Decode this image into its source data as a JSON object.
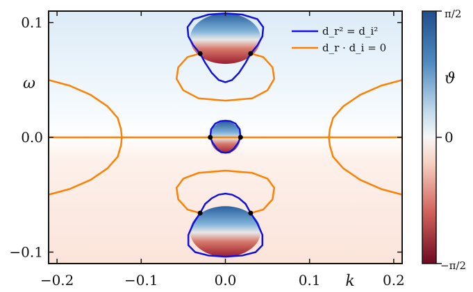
{
  "chart_data": {
    "type": "heatmap",
    "title": "",
    "xlabel": "k",
    "ylabel": "ω",
    "xlim": [
      -0.21,
      0.21
    ],
    "ylim": [
      -0.11,
      0.11
    ],
    "x_ticks": [
      -0.2,
      -0.1,
      0.0,
      0.1,
      0.2
    ],
    "x_tick_labels": [
      "−0.2",
      "−0.1",
      "0.0",
      "0.1",
      "0.2"
    ],
    "y_ticks": [
      -0.1,
      0.0,
      0.1
    ],
    "y_tick_labels": [
      "−0.1",
      "0.0",
      "0.1"
    ],
    "colorbar": {
      "label": "ϑ",
      "range": [
        "−π/2",
        "π/2"
      ],
      "ticks": [
        "π/2",
        "0",
        "−π/2"
      ],
      "colormap": "RdBu (red negative, blue positive)"
    },
    "legend": {
      "placement": "top-right",
      "entries": [
        {
          "label": "d_r² = d_i²",
          "color": "#1010e0"
        },
        {
          "label": "d_r · d_i = 0",
          "color": "#ff8000"
        }
      ]
    },
    "series": [
      {
        "name": "d_r² = d_i²",
        "color": "#1010e0",
        "contours": [
          {
            "k": [
              -0.03,
              -0.038,
              -0.044,
              -0.045,
              -0.038,
              -0.02,
              0,
              0.02,
              0.038,
              0.045,
              0.044,
              0.038,
              0.03
            ],
            "w": [
              0.073,
              0.08,
              0.088,
              0.096,
              0.103,
              0.107,
              0.108,
              0.107,
              0.103,
              0.096,
              0.088,
              0.08,
              0.073
            ]
          },
          {
            "k": [
              -0.03,
              -0.024,
              -0.016,
              -0.008,
              0,
              0.008,
              0.016,
              0.024,
              0.03
            ],
            "w": [
              0.073,
              0.065,
              0.056,
              0.05,
              0.048,
              0.05,
              0.056,
              0.065,
              0.073
            ]
          },
          {
            "k": [
              -0.018,
              -0.017,
              -0.012,
              -0.006,
              0,
              0.006,
              0.012,
              0.017,
              0.018
            ],
            "w": [
              0,
              0.007,
              0.012,
              0.014,
              0.0145,
              0.014,
              0.012,
              0.007,
              0
            ]
          },
          {
            "k": [
              -0.018,
              -0.015,
              -0.01,
              -0.005,
              0,
              0.005,
              0.01,
              0.015,
              0.018
            ],
            "w": [
              0,
              -0.005,
              -0.01,
              -0.013,
              -0.0135,
              -0.013,
              -0.01,
              -0.005,
              0
            ]
          },
          {
            "k": [
              -0.03,
              -0.024,
              -0.016,
              -0.008,
              0,
              0.008,
              0.016,
              0.024,
              0.03
            ],
            "w": [
              -0.066,
              -0.058,
              -0.053,
              -0.05,
              -0.049,
              -0.05,
              -0.053,
              -0.058,
              -0.066
            ]
          },
          {
            "k": [
              -0.03,
              -0.038,
              -0.044,
              -0.044,
              -0.036,
              -0.02,
              0,
              0.02,
              0.036,
              0.044,
              0.044,
              0.038,
              0.03
            ],
            "w": [
              -0.066,
              -0.075,
              -0.085,
              -0.094,
              -0.1,
              -0.103,
              -0.104,
              -0.103,
              -0.1,
              -0.094,
              -0.085,
              -0.075,
              -0.066
            ]
          }
        ]
      },
      {
        "name": "d_r · d_i = 0",
        "color": "#ff8000",
        "contours": [
          {
            "k": [
              -0.21,
              0.21
            ],
            "w": [
              0,
              0
            ]
          },
          {
            "k": [
              -0.03,
              -0.045,
              -0.056,
              -0.058,
              -0.05,
              -0.032,
              0,
              0.032,
              0.05,
              0.058,
              0.056,
              0.045,
              0.03
            ],
            "w": [
              0.073,
              0.07,
              0.061,
              0.051,
              0.041,
              0.034,
              0.032,
              0.034,
              0.041,
              0.051,
              0.061,
              0.07,
              0.073
            ]
          },
          {
            "k": [
              -0.03,
              -0.045,
              -0.056,
              -0.058,
              -0.05,
              -0.032,
              0,
              0.032,
              0.05,
              0.058,
              0.056,
              0.045,
              0.03
            ],
            "w": [
              -0.066,
              -0.063,
              -0.054,
              -0.044,
              -0.036,
              -0.031,
              -0.029,
              -0.031,
              -0.036,
              -0.044,
              -0.054,
              -0.063,
              -0.066
            ]
          },
          {
            "k": [
              -0.21,
              -0.185,
              -0.16,
              -0.14,
              -0.128,
              -0.124,
              -0.123,
              -0.124,
              -0.128,
              -0.14,
              -0.16,
              -0.185,
              -0.21
            ],
            "w": [
              0.05,
              0.045,
              0.037,
              0.027,
              0.017,
              0.007,
              0,
              -0.007,
              -0.017,
              -0.027,
              -0.037,
              -0.045,
              -0.05
            ]
          },
          {
            "k": [
              0.21,
              0.185,
              0.16,
              0.14,
              0.128,
              0.124,
              0.123,
              0.124,
              0.128,
              0.14,
              0.16,
              0.185,
              0.21
            ],
            "w": [
              0.05,
              0.045,
              0.037,
              0.027,
              0.017,
              0.007,
              0,
              -0.007,
              -0.017,
              -0.027,
              -0.037,
              -0.045,
              -0.05
            ]
          }
        ]
      }
    ],
    "intersection_points": [
      {
        "k": -0.03,
        "w": 0.073
      },
      {
        "k": 0.03,
        "w": 0.073
      },
      {
        "k": -0.018,
        "w": 0.0
      },
      {
        "k": 0.018,
        "w": 0.0
      },
      {
        "k": -0.03,
        "w": -0.066
      },
      {
        "k": 0.03,
        "w": -0.066
      }
    ],
    "shaded_regions": [
      {
        "k0": 0,
        "w0": 0.086,
        "rk": 0.042,
        "rw": 0.022,
        "tone": "blue-top/red-bottom"
      },
      {
        "k0": 0,
        "w0": 0.0,
        "rk": 0.018,
        "rw": 0.014,
        "tone": "blue-top/red-bottom"
      },
      {
        "k0": 0,
        "w0": -0.082,
        "rk": 0.042,
        "rw": 0.022,
        "tone": "blue-top/red-bottom"
      }
    ]
  }
}
